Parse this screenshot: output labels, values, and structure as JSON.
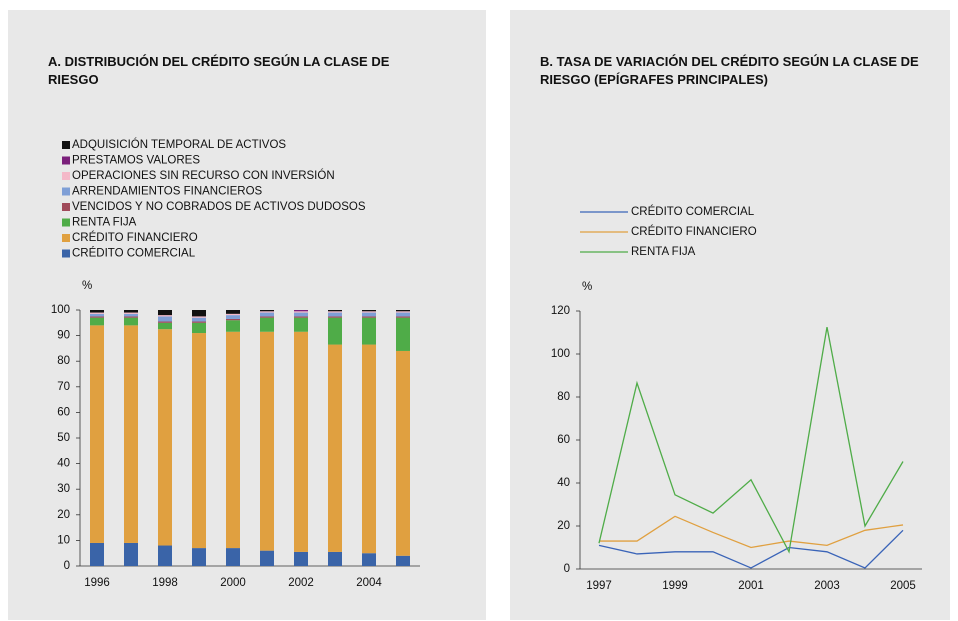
{
  "chart_data": [
    {
      "type": "bar",
      "stacked": true,
      "title": "A. DISTRIBUCIÓN DEL CRÉDITO SEGÚN LA CLASE DE RIESGO",
      "ylabel": "%",
      "categories": [
        "1996",
        null,
        "1998",
        null,
        "2000",
        null,
        "2002",
        null,
        "2004",
        null
      ],
      "ylim": [
        0,
        100
      ],
      "yticks": [
        0,
        10,
        20,
        30,
        40,
        50,
        60,
        70,
        80,
        90,
        100
      ],
      "series": [
        {
          "name": "CRÉDITO COMERCIAL",
          "color": "#3a64a8",
          "values": [
            9,
            9,
            8,
            7,
            7,
            6,
            5.5,
            5.5,
            5,
            4
          ]
        },
        {
          "name": "CRÉDITO FINANCIERO",
          "color": "#e0a040",
          "values": [
            85,
            85,
            84.5,
            84,
            84.5,
            85.5,
            86,
            81,
            81.5,
            80
          ]
        },
        {
          "name": "RENTA FIJA",
          "color": "#4fac48",
          "values": [
            3,
            3,
            2.5,
            4,
            4.5,
            5.5,
            5.5,
            10.5,
            10.5,
            13
          ]
        },
        {
          "name": "VENCIDOS Y  NO COBRADOS DE ACTIVOS DUDOSOS",
          "color": "#a04a5a",
          "values": [
            0.5,
            0.5,
            0.5,
            0.5,
            0.5,
            0.5,
            0.5,
            0.5,
            0.5,
            0.5
          ]
        },
        {
          "name": "ARRENDAMIENTOS FINANCIEROS",
          "color": "#7f9fd6",
          "values": [
            1,
            1,
            2,
            1.5,
            1.5,
            1.5,
            1.5,
            1.5,
            1.5,
            1.5
          ]
        },
        {
          "name": "OPERACIONES SIN RECURSO CON INVERSIÓN",
          "color": "#f4b8c8",
          "values": [
            0.5,
            0.5,
            0.5,
            0.5,
            0.5,
            0.5,
            0.5,
            0.5,
            0.5,
            0.5
          ]
        },
        {
          "name": "PRESTAMOS VALORES",
          "color": "#7a1f7a",
          "values": [
            0,
            0,
            0,
            0,
            0,
            0,
            0.5,
            0,
            0,
            0
          ]
        },
        {
          "name": "ADQUISICIÓN TEMPORAL DE ACTIVOS",
          "color": "#111111",
          "values": [
            1,
            1,
            2,
            2.5,
            1.5,
            0.5,
            0,
            0.5,
            0.5,
            0.5
          ]
        }
      ]
    },
    {
      "type": "line",
      "title": "B. TASA DE  VARIACIÓN DEL CRÉDITO SEGÚN LA CLASE DE RIESGO (EPÍGRAFES PRINCIPALES)",
      "ylabel": "%",
      "categories": [
        "1997",
        null,
        "1999",
        null,
        "2001",
        null,
        "2003",
        null,
        "2005"
      ],
      "ylim": [
        0,
        120
      ],
      "yticks": [
        0,
        20,
        40,
        60,
        80,
        100,
        120
      ],
      "series": [
        {
          "name": "CRÉDITO COMERCIAL",
          "color": "#3a64b8",
          "values": [
            11,
            7,
            8,
            8,
            0.5,
            10,
            8,
            0.5,
            18
          ]
        },
        {
          "name": "CRÉDITO FINANCIERO",
          "color": "#e0a040",
          "values": [
            13,
            13,
            24.5,
            17,
            10,
            13,
            11,
            18,
            20.5
          ]
        },
        {
          "name": "RENTA FIJA",
          "color": "#4fac48",
          "values": [
            12,
            86.5,
            34.5,
            26,
            41.5,
            8,
            112.5,
            20,
            50
          ]
        }
      ]
    }
  ]
}
